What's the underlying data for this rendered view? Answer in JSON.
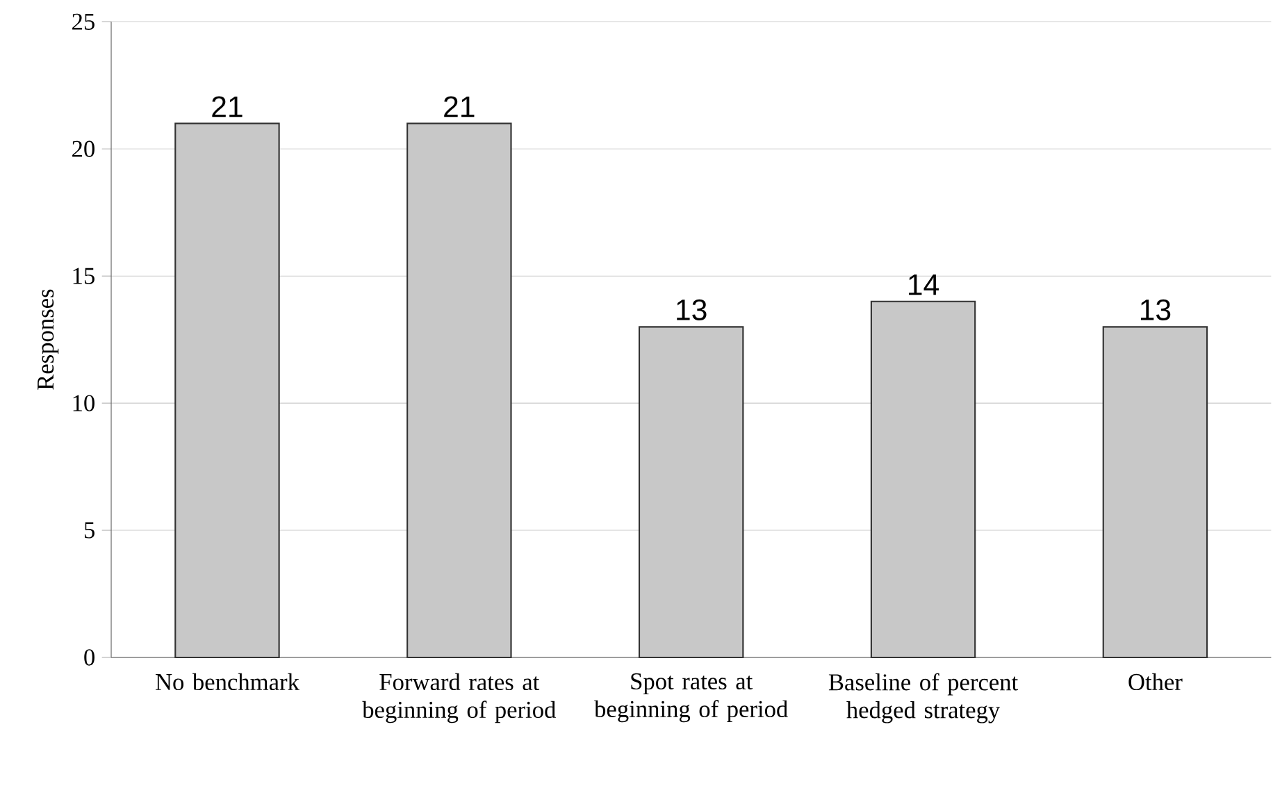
{
  "chart_data": {
    "type": "bar",
    "ylabel": "Responses",
    "categories": [
      "No benchmark",
      "Forward rates at beginning of period",
      "Spot rates at beginning of period",
      "Baseline of percent hedged strategy",
      "Other"
    ],
    "values": [
      21,
      21,
      13,
      14,
      13
    ],
    "color": "#c8c8c8",
    "ylim": [
      0,
      25
    ],
    "yticks": [
      0,
      5,
      10,
      15,
      20,
      25
    ],
    "grid": "y",
    "data_labels": true
  }
}
